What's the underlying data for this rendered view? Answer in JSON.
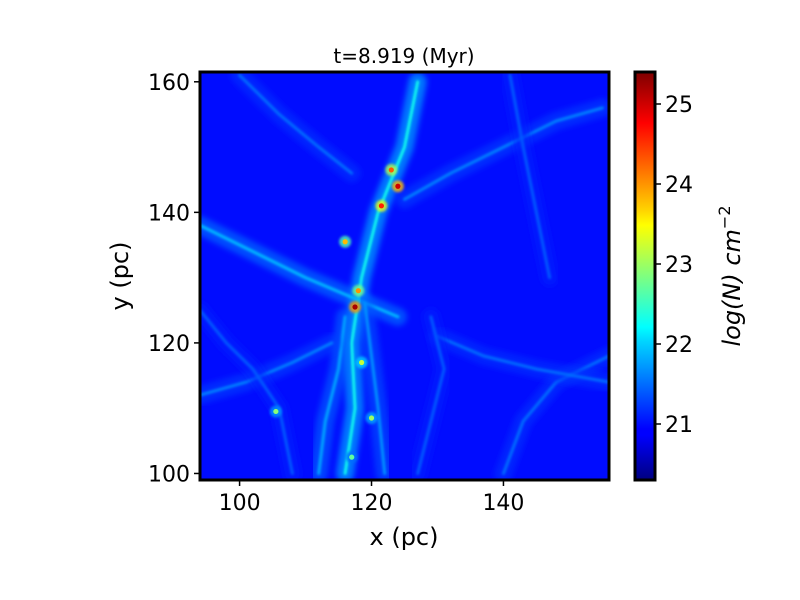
{
  "chart_data": {
    "type": "heatmap",
    "title": "t=8.919 (Myr)",
    "xlabel": "x (pc)",
    "ylabel": "y (pc)",
    "xlim": [
      94,
      156
    ],
    "ylim": [
      99,
      161.5
    ],
    "x_ticks": [
      {
        "value": 100,
        "label": "100"
      },
      {
        "value": 120,
        "label": "120"
      },
      {
        "value": 140,
        "label": "140"
      }
    ],
    "y_ticks": [
      {
        "value": 100,
        "label": "100"
      },
      {
        "value": 120,
        "label": "120"
      },
      {
        "value": 140,
        "label": "140"
      },
      {
        "value": 160,
        "label": "160"
      }
    ],
    "colorbar": {
      "label_base": "log(N) cm",
      "label_exponent": "−2",
      "colormap": "jet",
      "range": [
        20.3,
        25.4
      ],
      "ticks": [
        {
          "value": 21,
          "label": "21"
        },
        {
          "value": 22,
          "label": "22"
        },
        {
          "value": 23,
          "label": "23"
        },
        {
          "value": 24,
          "label": "24"
        },
        {
          "value": 25,
          "label": "25"
        }
      ]
    },
    "background_level": 21.0,
    "structures": [
      {
        "kind": "filament",
        "level": 22.3,
        "points": [
          [
            116,
            100
          ],
          [
            117.5,
            110
          ],
          [
            117,
            120
          ],
          [
            118.5,
            130
          ],
          [
            121,
            140
          ],
          [
            125,
            150
          ],
          [
            127,
            160
          ]
        ]
      },
      {
        "kind": "filament",
        "level": 21.9,
        "points": [
          [
            94,
            138
          ],
          [
            102,
            134
          ],
          [
            110,
            130
          ],
          [
            117,
            127
          ],
          [
            124,
            124
          ]
        ]
      },
      {
        "kind": "filament",
        "level": 21.8,
        "points": [
          [
            112,
            100
          ],
          [
            113,
            108
          ],
          [
            115,
            116
          ],
          [
            116,
            124
          ]
        ]
      },
      {
        "kind": "filament",
        "level": 21.7,
        "points": [
          [
            122,
            100
          ],
          [
            121,
            110
          ],
          [
            120,
            118
          ],
          [
            119,
            126
          ]
        ]
      },
      {
        "kind": "filament",
        "level": 21.6,
        "points": [
          [
            94,
            112
          ],
          [
            101,
            114
          ],
          [
            108,
            117
          ],
          [
            114,
            120
          ]
        ]
      },
      {
        "kind": "filament",
        "level": 21.6,
        "points": [
          [
            125,
            142
          ],
          [
            132,
            146
          ],
          [
            140,
            150
          ],
          [
            148,
            154
          ],
          [
            155,
            156
          ]
        ]
      },
      {
        "kind": "filament",
        "level": 21.5,
        "points": [
          [
            140,
            100
          ],
          [
            143,
            108
          ],
          [
            148,
            114
          ],
          [
            156,
            118
          ]
        ]
      },
      {
        "kind": "filament",
        "level": 21.5,
        "points": [
          [
            100,
            161
          ],
          [
            106,
            155
          ],
          [
            112,
            150
          ],
          [
            117,
            146
          ]
        ]
      },
      {
        "kind": "filament",
        "level": 21.5,
        "points": [
          [
            130,
            121
          ],
          [
            137,
            118
          ],
          [
            145,
            116
          ],
          [
            156,
            114
          ]
        ]
      },
      {
        "kind": "filament",
        "level": 21.4,
        "points": [
          [
            141,
            161
          ],
          [
            143,
            150
          ],
          [
            145,
            140
          ],
          [
            147,
            130
          ]
        ]
      },
      {
        "kind": "filament",
        "level": 21.4,
        "points": [
          [
            94,
            125
          ],
          [
            98,
            120
          ],
          [
            102,
            116
          ],
          [
            106,
            110
          ],
          [
            108,
            100
          ]
        ]
      },
      {
        "kind": "filament",
        "level": 21.4,
        "points": [
          [
            127,
            100
          ],
          [
            129,
            108
          ],
          [
            131,
            116
          ],
          [
            129,
            124
          ]
        ]
      }
    ],
    "clumps": [
      {
        "x": 124,
        "y": 144,
        "level": 25.0
      },
      {
        "x": 121.5,
        "y": 141,
        "level": 24.6
      },
      {
        "x": 123,
        "y": 146.5,
        "level": 24.3
      },
      {
        "x": 117.5,
        "y": 125.5,
        "level": 25.2
      },
      {
        "x": 118,
        "y": 128,
        "level": 24.0
      },
      {
        "x": 116,
        "y": 135.5,
        "level": 23.8
      },
      {
        "x": 118.5,
        "y": 117,
        "level": 23.2
      },
      {
        "x": 120,
        "y": 108.5,
        "level": 23.0
      },
      {
        "x": 105.5,
        "y": 109.5,
        "level": 22.9
      },
      {
        "x": 117,
        "y": 102.5,
        "level": 22.7
      }
    ]
  }
}
